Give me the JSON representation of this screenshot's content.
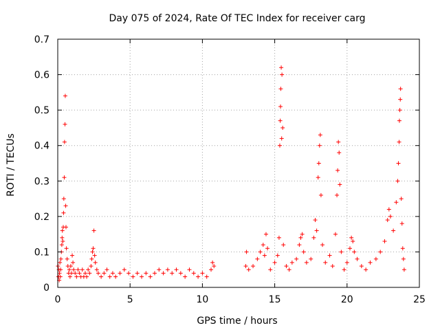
{
  "chart_data": {
    "type": "scatter",
    "title": "Day 075 of 2024, Rate Of TEC Index for receiver carg",
    "xlabel": "GPS time / hours",
    "ylabel": "ROTI / TECUs",
    "xlim": [
      0,
      25
    ],
    "ylim": [
      0,
      0.7
    ],
    "x_ticks": [
      0,
      5,
      10,
      15,
      20,
      25
    ],
    "y_ticks": [
      0,
      0.1,
      0.2,
      0.3,
      0.4,
      0.5,
      0.6,
      0.7
    ],
    "x_tick_labels": [
      "0",
      "5",
      "10",
      "15",
      "20",
      "25"
    ],
    "y_tick_labels": [
      "0",
      "0.1",
      "0.2",
      "0.3",
      "0.4",
      "0.5",
      "0.6",
      "0.7"
    ],
    "grid": true,
    "marker": "+",
    "marker_color": "#ff0000",
    "series": [
      {
        "name": "ROTI",
        "points": [
          [
            0.02,
            0.06
          ],
          [
            0.05,
            0.03
          ],
          [
            0.08,
            0.05
          ],
          [
            0.1,
            0.02
          ],
          [
            0.12,
            0.04
          ],
          [
            0.15,
            0.07
          ],
          [
            0.18,
            0.03
          ],
          [
            0.2,
            0.05
          ],
          [
            0.22,
            0.08
          ],
          [
            0.25,
            0.1
          ],
          [
            0.28,
            0.12
          ],
          [
            0.3,
            0.14
          ],
          [
            0.32,
            0.16
          ],
          [
            0.35,
            0.13
          ],
          [
            0.38,
            0.17
          ],
          [
            0.4,
            0.21
          ],
          [
            0.42,
            0.25
          ],
          [
            0.45,
            0.31
          ],
          [
            0.47,
            0.41
          ],
          [
            0.5,
            0.46
          ],
          [
            0.52,
            0.54
          ],
          [
            0.55,
            0.23
          ],
          [
            0.57,
            0.17
          ],
          [
            0.6,
            0.11
          ],
          [
            0.65,
            0.08
          ],
          [
            0.7,
            0.06
          ],
          [
            0.75,
            0.04
          ],
          [
            0.8,
            0.05
          ],
          [
            0.85,
            0.03
          ],
          [
            0.9,
            0.06
          ],
          [
            0.95,
            0.04
          ],
          [
            1.0,
            0.09
          ],
          [
            1.05,
            0.07
          ],
          [
            1.1,
            0.05
          ],
          [
            1.2,
            0.04
          ],
          [
            1.3,
            0.03
          ],
          [
            1.4,
            0.05
          ],
          [
            1.5,
            0.04
          ],
          [
            1.6,
            0.03
          ],
          [
            1.7,
            0.05
          ],
          [
            1.8,
            0.03
          ],
          [
            1.9,
            0.04
          ],
          [
            2.0,
            0.03
          ],
          [
            2.1,
            0.05
          ],
          [
            2.2,
            0.04
          ],
          [
            2.3,
            0.06
          ],
          [
            2.35,
            0.08
          ],
          [
            2.4,
            0.1
          ],
          [
            2.45,
            0.11
          ],
          [
            2.5,
            0.16
          ],
          [
            2.55,
            0.09
          ],
          [
            2.6,
            0.07
          ],
          [
            2.7,
            0.05
          ],
          [
            2.8,
            0.04
          ],
          [
            3.0,
            0.03
          ],
          [
            3.2,
            0.04
          ],
          [
            3.4,
            0.05
          ],
          [
            3.6,
            0.03
          ],
          [
            3.8,
            0.04
          ],
          [
            4.0,
            0.03
          ],
          [
            4.3,
            0.04
          ],
          [
            4.6,
            0.05
          ],
          [
            4.9,
            0.04
          ],
          [
            5.2,
            0.03
          ],
          [
            5.5,
            0.04
          ],
          [
            5.8,
            0.03
          ],
          [
            6.1,
            0.04
          ],
          [
            6.4,
            0.03
          ],
          [
            6.7,
            0.04
          ],
          [
            7.0,
            0.05
          ],
          [
            7.3,
            0.04
          ],
          [
            7.6,
            0.05
          ],
          [
            7.9,
            0.04
          ],
          [
            8.2,
            0.05
          ],
          [
            8.5,
            0.04
          ],
          [
            8.8,
            0.03
          ],
          [
            9.1,
            0.05
          ],
          [
            9.4,
            0.04
          ],
          [
            9.7,
            0.03
          ],
          [
            10.0,
            0.04
          ],
          [
            10.3,
            0.03
          ],
          [
            10.6,
            0.05
          ],
          [
            10.7,
            0.07
          ],
          [
            10.8,
            0.06
          ],
          [
            13.0,
            0.06
          ],
          [
            13.05,
            0.1
          ],
          [
            13.2,
            0.05
          ],
          [
            13.5,
            0.06
          ],
          [
            13.8,
            0.08
          ],
          [
            14.0,
            0.1
          ],
          [
            14.2,
            0.12
          ],
          [
            14.3,
            0.09
          ],
          [
            14.4,
            0.15
          ],
          [
            14.5,
            0.11
          ],
          [
            14.7,
            0.05
          ],
          [
            15.0,
            0.07
          ],
          [
            15.2,
            0.09
          ],
          [
            15.3,
            0.14
          ],
          [
            15.35,
            0.4
          ],
          [
            15.38,
            0.47
          ],
          [
            15.4,
            0.51
          ],
          [
            15.42,
            0.56
          ],
          [
            15.45,
            0.62
          ],
          [
            15.48,
            0.42
          ],
          [
            15.5,
            0.6
          ],
          [
            15.55,
            0.45
          ],
          [
            15.6,
            0.12
          ],
          [
            15.8,
            0.06
          ],
          [
            16.0,
            0.05
          ],
          [
            16.2,
            0.07
          ],
          [
            16.5,
            0.08
          ],
          [
            16.7,
            0.12
          ],
          [
            16.8,
            0.14
          ],
          [
            16.9,
            0.15
          ],
          [
            17.0,
            0.1
          ],
          [
            17.2,
            0.07
          ],
          [
            17.5,
            0.08
          ],
          [
            17.7,
            0.14
          ],
          [
            17.8,
            0.19
          ],
          [
            17.9,
            0.16
          ],
          [
            18.0,
            0.31
          ],
          [
            18.05,
            0.35
          ],
          [
            18.1,
            0.4
          ],
          [
            18.15,
            0.43
          ],
          [
            18.2,
            0.26
          ],
          [
            18.3,
            0.12
          ],
          [
            18.5,
            0.07
          ],
          [
            18.8,
            0.09
          ],
          [
            19.0,
            0.06
          ],
          [
            19.2,
            0.15
          ],
          [
            19.3,
            0.26
          ],
          [
            19.35,
            0.33
          ],
          [
            19.4,
            0.41
          ],
          [
            19.45,
            0.38
          ],
          [
            19.5,
            0.29
          ],
          [
            19.6,
            0.1
          ],
          [
            19.8,
            0.05
          ],
          [
            20.0,
            0.07
          ],
          [
            20.2,
            0.11
          ],
          [
            20.3,
            0.14
          ],
          [
            20.4,
            0.13
          ],
          [
            20.5,
            0.1
          ],
          [
            20.7,
            0.08
          ],
          [
            21.0,
            0.06
          ],
          [
            21.3,
            0.05
          ],
          [
            21.6,
            0.07
          ],
          [
            22.0,
            0.08
          ],
          [
            22.3,
            0.1
          ],
          [
            22.6,
            0.13
          ],
          [
            22.8,
            0.19
          ],
          [
            22.9,
            0.22
          ],
          [
            23.0,
            0.2
          ],
          [
            23.2,
            0.16
          ],
          [
            23.4,
            0.24
          ],
          [
            23.5,
            0.3
          ],
          [
            23.55,
            0.35
          ],
          [
            23.6,
            0.41
          ],
          [
            23.62,
            0.47
          ],
          [
            23.65,
            0.5
          ],
          [
            23.68,
            0.53
          ],
          [
            23.7,
            0.56
          ],
          [
            23.75,
            0.25
          ],
          [
            23.8,
            0.18
          ],
          [
            23.85,
            0.11
          ],
          [
            23.9,
            0.08
          ],
          [
            23.95,
            0.05
          ]
        ]
      }
    ]
  }
}
